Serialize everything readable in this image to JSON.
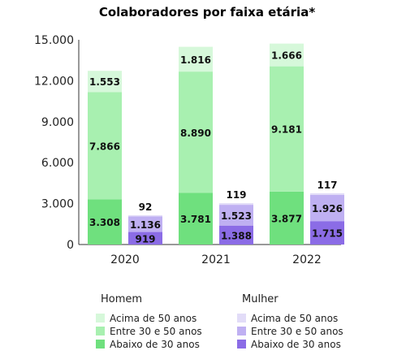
{
  "chart_data": {
    "type": "bar",
    "stacked": true,
    "title": "Colaboradores por faixa etária*",
    "categories": [
      "2020",
      "2021",
      "2022"
    ],
    "ylim": [
      0,
      15000
    ],
    "y_ticks": [
      "0",
      "3.000",
      "6.000",
      "9.000",
      "12.000",
      "15.000"
    ],
    "groups": [
      {
        "name": "Homem",
        "series": [
          {
            "name": "Abaixo de 30 anos",
            "values": [
              3308,
              3781,
              3877
            ],
            "labels": [
              "3.308",
              "3.781",
              "3.877"
            ],
            "color": "#6fe07e"
          },
          {
            "name": "Entre 30 e 50 anos",
            "values": [
              7866,
              8890,
              9181
            ],
            "labels": [
              "7.866",
              "8.890",
              "9.181"
            ],
            "color": "#a8f0b0"
          },
          {
            "name": "Acima de 50 anos",
            "values": [
              1553,
              1816,
              1666
            ],
            "labels": [
              "1.553",
              "1.816",
              "1.666"
            ],
            "color": "#d6f8da"
          }
        ]
      },
      {
        "name": "Mulher",
        "series": [
          {
            "name": "Abaixo de 30 anos",
            "values": [
              919,
              1388,
              1715
            ],
            "labels": [
              "919",
              "1.388",
              "1.715"
            ],
            "color": "#8b6ce6"
          },
          {
            "name": "Entre 30 e 50 anos",
            "values": [
              1136,
              1523,
              1926
            ],
            "labels": [
              "1.136",
              "1.523",
              "1.926"
            ],
            "color": "#bfb0f2"
          },
          {
            "name": "Acima de 50 anos",
            "values": [
              92,
              119,
              117
            ],
            "labels": [
              "92",
              "119",
              "117"
            ],
            "color": "#e2dcf8"
          }
        ]
      }
    ],
    "legend": {
      "placement": "bottom",
      "columns": [
        {
          "header": "Homem",
          "items": [
            {
              "label": "Acima de 50 anos",
              "color": "#d6f8da"
            },
            {
              "label": "Entre 30 e 50 anos",
              "color": "#a8f0b0"
            },
            {
              "label": "Abaixo de 30 anos",
              "color": "#6fe07e"
            }
          ]
        },
        {
          "header": "Mulher",
          "items": [
            {
              "label": "Acima de 50 anos",
              "color": "#e2dcf8"
            },
            {
              "label": "Entre 30 e 50 anos",
              "color": "#bfb0f2"
            },
            {
              "label": "Abaixo de 30 anos",
              "color": "#8b6ce6"
            }
          ]
        }
      ]
    },
    "grid": false
  }
}
